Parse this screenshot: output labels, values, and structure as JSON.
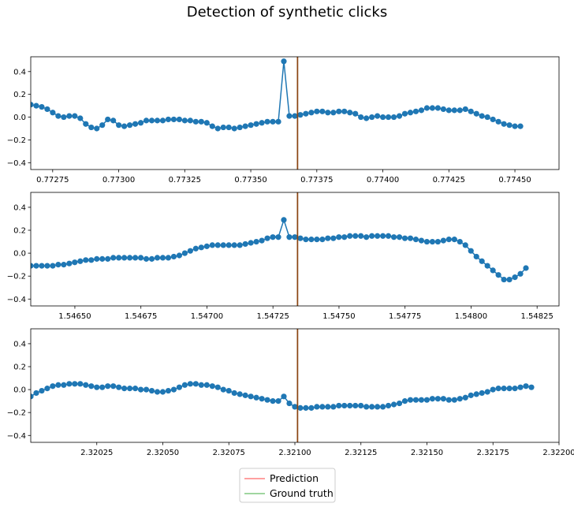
{
  "figure": {
    "title": "Detection of synthetic clicks"
  },
  "legend": {
    "placement": "bottom-center",
    "entries": [
      {
        "label": "Prediction",
        "color": "#ff8080"
      },
      {
        "label": "Ground truth",
        "color": "#80c880"
      }
    ]
  },
  "colors": {
    "series": "#1f77b4",
    "marker_line": "#8b4513",
    "axes": "#000000"
  },
  "chart_data": [
    {
      "type": "line",
      "grid": false,
      "xlim": [
        0.772667,
        0.774667
      ],
      "ylim": [
        -0.46,
        0.53
      ],
      "xticks": [
        0.77275,
        0.773,
        0.77325,
        0.7735,
        0.77375,
        0.774,
        0.77425,
        0.7745
      ],
      "xtick_labels": [
        "0.77275",
        "0.77300",
        "0.77325",
        "0.77350",
        "0.77375",
        "0.77400",
        "0.77425",
        "0.77450"
      ],
      "yticks": [
        -0.4,
        -0.2,
        0.0,
        0.2,
        0.4
      ],
      "ytick_labels": [
        "−0.4",
        "−0.2",
        "0.0",
        "0.2",
        "0.4"
      ],
      "x_start": 0.772667,
      "x_step": 2.083e-05,
      "prediction_x": 0.773677,
      "ground_truth_x": 0.773677,
      "values": [
        0.11,
        0.1,
        0.09,
        0.07,
        0.04,
        0.01,
        0.0,
        0.01,
        0.01,
        -0.01,
        -0.06,
        -0.09,
        -0.1,
        -0.07,
        -0.02,
        -0.03,
        -0.07,
        -0.08,
        -0.07,
        -0.06,
        -0.05,
        -0.03,
        -0.03,
        -0.03,
        -0.03,
        -0.02,
        -0.02,
        -0.02,
        -0.03,
        -0.03,
        -0.04,
        -0.04,
        -0.05,
        -0.08,
        -0.1,
        -0.09,
        -0.09,
        -0.1,
        -0.09,
        -0.08,
        -0.07,
        -0.06,
        -0.05,
        -0.04,
        -0.04,
        -0.04,
        0.49,
        0.01,
        0.01,
        0.02,
        0.03,
        0.04,
        0.05,
        0.05,
        0.04,
        0.04,
        0.05,
        0.05,
        0.04,
        0.03,
        0.0,
        -0.01,
        0.0,
        0.01,
        0.0,
        0.0,
        0.0,
        0.01,
        0.03,
        0.04,
        0.05,
        0.06,
        0.08,
        0.08,
        0.08,
        0.07,
        0.06,
        0.06,
        0.06,
        0.07,
        0.05,
        0.03,
        0.01,
        0.0,
        -0.02,
        -0.04,
        -0.06,
        -0.07,
        -0.08,
        -0.08
      ]
    },
    {
      "type": "line",
      "grid": false,
      "xlim": [
        1.546333,
        1.548333
      ],
      "ylim": [
        -0.46,
        0.53
      ],
      "xticks": [
        1.5465,
        1.54675,
        1.547,
        1.54725,
        1.5475,
        1.54775,
        1.548,
        1.54825
      ],
      "xtick_labels": [
        "1.54650",
        "1.54675",
        "1.54700",
        "1.54725",
        "1.54750",
        "1.54775",
        "1.54800",
        "1.54825"
      ],
      "yticks": [
        -0.4,
        -0.2,
        0.0,
        0.2,
        0.4
      ],
      "ytick_labels": [
        "−0.4",
        "−0.2",
        "0.0",
        "0.2",
        "0.4"
      ],
      "x_start": 1.546333,
      "x_step": 2.083e-05,
      "prediction_x": 1.547343,
      "ground_truth_x": 1.547343,
      "values": [
        -0.11,
        -0.11,
        -0.11,
        -0.11,
        -0.11,
        -0.1,
        -0.1,
        -0.09,
        -0.08,
        -0.07,
        -0.06,
        -0.06,
        -0.05,
        -0.05,
        -0.05,
        -0.04,
        -0.04,
        -0.04,
        -0.04,
        -0.04,
        -0.04,
        -0.05,
        -0.05,
        -0.04,
        -0.04,
        -0.04,
        -0.03,
        -0.02,
        0.0,
        0.02,
        0.04,
        0.05,
        0.06,
        0.07,
        0.07,
        0.07,
        0.07,
        0.07,
        0.07,
        0.08,
        0.09,
        0.1,
        0.11,
        0.13,
        0.14,
        0.14,
        0.29,
        0.14,
        0.14,
        0.13,
        0.12,
        0.12,
        0.12,
        0.12,
        0.13,
        0.13,
        0.14,
        0.14,
        0.15,
        0.15,
        0.15,
        0.14,
        0.15,
        0.15,
        0.15,
        0.15,
        0.14,
        0.14,
        0.13,
        0.13,
        0.12,
        0.11,
        0.1,
        0.1,
        0.1,
        0.11,
        0.12,
        0.12,
        0.1,
        0.07,
        0.02,
        -0.03,
        -0.07,
        -0.11,
        -0.15,
        -0.19,
        -0.23,
        -0.23,
        -0.21,
        -0.18,
        -0.13
      ]
    },
    {
      "type": "line",
      "grid": false,
      "xlim": [
        2.32,
        2.322
      ],
      "ylim": [
        -0.46,
        0.53
      ],
      "xticks": [
        2.32025,
        2.3205,
        2.32075,
        2.321,
        2.32125,
        2.3215,
        2.32175,
        2.322
      ],
      "xtick_labels": [
        "2.32025",
        "2.32050",
        "2.32075",
        "2.32100",
        "2.32125",
        "2.32150",
        "2.32175",
        "2.32200"
      ],
      "yticks": [
        -0.4,
        -0.2,
        0.0,
        0.2,
        0.4
      ],
      "ytick_labels": [
        "−0.4",
        "−0.2",
        "0.0",
        "0.2",
        "0.4"
      ],
      "x_start": 2.32,
      "x_step": 2.083e-05,
      "prediction_x": 2.32101,
      "ground_truth_x": 2.32101,
      "values": [
        -0.06,
        -0.03,
        -0.01,
        0.01,
        0.03,
        0.04,
        0.04,
        0.05,
        0.05,
        0.05,
        0.04,
        0.03,
        0.02,
        0.02,
        0.03,
        0.03,
        0.02,
        0.01,
        0.01,
        0.01,
        0.0,
        0.0,
        -0.01,
        -0.02,
        -0.02,
        -0.01,
        0.0,
        0.02,
        0.04,
        0.05,
        0.05,
        0.04,
        0.04,
        0.03,
        0.02,
        0.0,
        -0.01,
        -0.03,
        -0.04,
        -0.05,
        -0.06,
        -0.07,
        -0.08,
        -0.09,
        -0.1,
        -0.1,
        -0.06,
        -0.12,
        -0.15,
        -0.16,
        -0.16,
        -0.16,
        -0.15,
        -0.15,
        -0.15,
        -0.15,
        -0.14,
        -0.14,
        -0.14,
        -0.14,
        -0.14,
        -0.15,
        -0.15,
        -0.15,
        -0.15,
        -0.14,
        -0.13,
        -0.12,
        -0.1,
        -0.09,
        -0.09,
        -0.09,
        -0.09,
        -0.08,
        -0.08,
        -0.08,
        -0.09,
        -0.09,
        -0.08,
        -0.07,
        -0.05,
        -0.04,
        -0.03,
        -0.02,
        0.0,
        0.01,
        0.01,
        0.01,
        0.01,
        0.02,
        0.03,
        0.02
      ]
    }
  ]
}
